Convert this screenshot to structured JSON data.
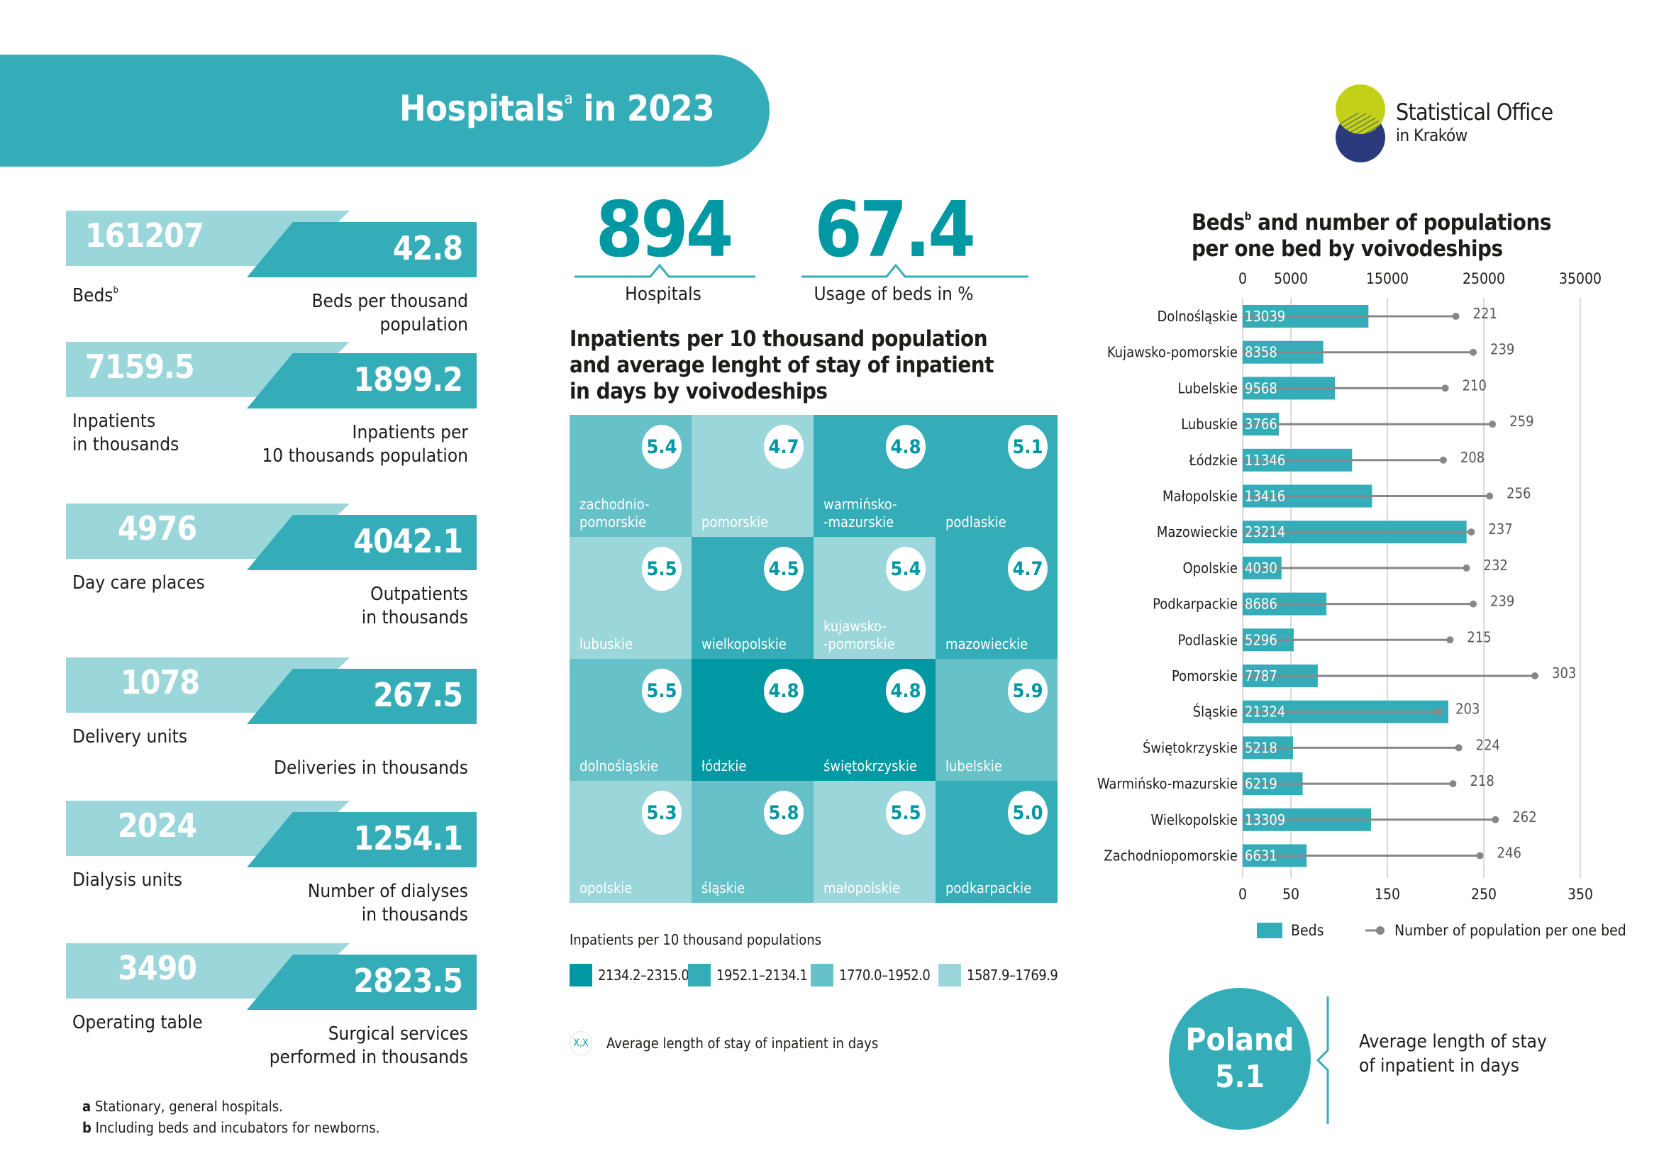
{
  "header": {
    "title": "Hospitals",
    "title_sup": "a",
    "title_suffix": " in 2023"
  },
  "logo": {
    "line1": "Statistical Office",
    "line2": "in Kraków",
    "colors": {
      "top_circle": "#c2d117",
      "bottom_circle": "#2b3a7c"
    }
  },
  "stats": [
    {
      "left_value": "161207",
      "left_label": "Beds",
      "left_sup": "b",
      "right_value": "42.8",
      "right_label": [
        "Beds per thousand",
        "population"
      ]
    },
    {
      "left_value": "7159.5",
      "left_label": "Inpatients\nin thousands",
      "left_sup": "",
      "right_value": "1899.2",
      "right_label": [
        "Inpatients per",
        "10 thousands population"
      ]
    },
    {
      "left_value": "4976",
      "left_label": "Day care places",
      "left_sup": "",
      "right_value": "4042.1",
      "right_label": [
        "Outpatients",
        "in thousands"
      ]
    },
    {
      "left_value": "1078",
      "left_label": "Delivery units",
      "left_sup": "",
      "right_value": "267.5",
      "right_label": [
        "Deliveries in thousands"
      ]
    },
    {
      "left_value": "2024",
      "left_label": "Dialysis units",
      "left_sup": "",
      "right_value": "1254.1",
      "right_label": [
        "Number of dialyses",
        "in thousands"
      ]
    },
    {
      "left_value": "3490",
      "left_label": "Operating table",
      "left_sup": "",
      "right_value": "2823.5",
      "right_label": [
        "Surgical services",
        "performed in thousands"
      ]
    }
  ],
  "kpis": [
    {
      "value": "894",
      "label": "Hospitals"
    },
    {
      "value": "67.4",
      "label": "Usage of beds in %"
    }
  ],
  "tilemap": {
    "title": [
      "Inpatients per 10 thousand population",
      "and average lenght of stay of inpatient",
      "in days by voivodeships"
    ],
    "tiles": [
      {
        "name": "zachodnio-\npomorskie",
        "value": "5.4",
        "class": 2
      },
      {
        "name": "pomorskie",
        "value": "4.7",
        "class": 3
      },
      {
        "name": "warmińsko-\n-mazurskie",
        "value": "4.8",
        "class": 1
      },
      {
        "name": "podlaskie",
        "value": "5.1",
        "class": 1
      },
      {
        "name": "lubuskie",
        "value": "5.5",
        "class": 3
      },
      {
        "name": "wielkopolskie",
        "value": "4.5",
        "class": 1
      },
      {
        "name": "kujawsko-\n-pomorskie",
        "value": "5.4",
        "class": 3
      },
      {
        "name": "mazowieckie",
        "value": "4.7",
        "class": 1
      },
      {
        "name": "dolnośląskie",
        "value": "5.5",
        "class": 2
      },
      {
        "name": "łódzkie",
        "value": "4.8",
        "class": 0
      },
      {
        "name": "świętokrzyskie",
        "value": "4.8",
        "class": 0
      },
      {
        "name": "lubelskie",
        "value": "5.9",
        "class": 2
      },
      {
        "name": "opolskie",
        "value": "5.3",
        "class": 3
      },
      {
        "name": "śląskie",
        "value": "5.8",
        "class": 2
      },
      {
        "name": "małopolskie",
        "value": "5.5",
        "class": 3
      },
      {
        "name": "podkarpackie",
        "value": "5.0",
        "class": 1
      }
    ],
    "legend_title": "Inpatients per 10 thousand populations",
    "legend": [
      {
        "label": "2134.2–2315.0",
        "color": "#0098a3"
      },
      {
        "label": "1952.1–2134.1",
        "color": "#35adb8"
      },
      {
        "label": "1770.0–1952.0",
        "color": "#67c1c8"
      },
      {
        "label": "1587.9–1769.9",
        "color": "#9bd6db"
      }
    ],
    "avg_legend_symbol": "X,X",
    "avg_legend_label": "Average length of stay of inpatient in days"
  },
  "chart_data": {
    "type": "bar",
    "title": "Beds and number of populations per one bed by voivodeships",
    "title_parts": [
      "Beds",
      "b",
      " and number of populations",
      "per one bed by voivodeships"
    ],
    "categories": [
      "Dolnośląskie",
      "Kujawsko-pomorskie",
      "Lubelskie",
      "Lubuskie",
      "Łódzkie",
      "Małopolskie",
      "Mazowieckie",
      "Opolskie",
      "Podkarpackie",
      "Podlaskie",
      "Pomorskie",
      "Śląskie",
      "Świętokrzyskie",
      "Warmińsko-mazurskie",
      "Wielkopolskie",
      "Zachodniopomorskie"
    ],
    "series": [
      {
        "name": "Beds",
        "type": "bar",
        "axis": "top",
        "values": [
          13039,
          8358,
          9568,
          3766,
          11346,
          13416,
          23214,
          4030,
          8686,
          5296,
          7787,
          21324,
          5218,
          6219,
          13309,
          6631
        ]
      },
      {
        "name": "Number of population per one bed",
        "type": "lollipop",
        "axis": "bottom",
        "values": [
          221,
          239,
          210,
          259,
          208,
          256,
          237,
          232,
          239,
          215,
          303,
          203,
          224,
          218,
          262,
          246
        ]
      }
    ],
    "top_axis": {
      "ticks": [
        0,
        5000,
        15000,
        25000,
        35000
      ],
      "range": [
        0,
        35000
      ]
    },
    "bottom_axis": {
      "ticks": [
        0,
        50,
        150,
        250,
        350
      ],
      "range": [
        0,
        350
      ]
    },
    "orientation": "horizontal",
    "grid": true,
    "legend_position": "bottom",
    "colors": {
      "bars": "#35adb8",
      "points": "#878787",
      "grid": "#d9d9d9"
    }
  },
  "poland": {
    "name": "Poland",
    "value": "5.1",
    "description": [
      "Average length of stay",
      "of inpatient in days"
    ]
  },
  "footnotes": [
    {
      "mark": "a",
      "text": " Stationary, general hospitals."
    },
    {
      "mark": "b",
      "text": " Including beds and incubators for newborns."
    }
  ]
}
